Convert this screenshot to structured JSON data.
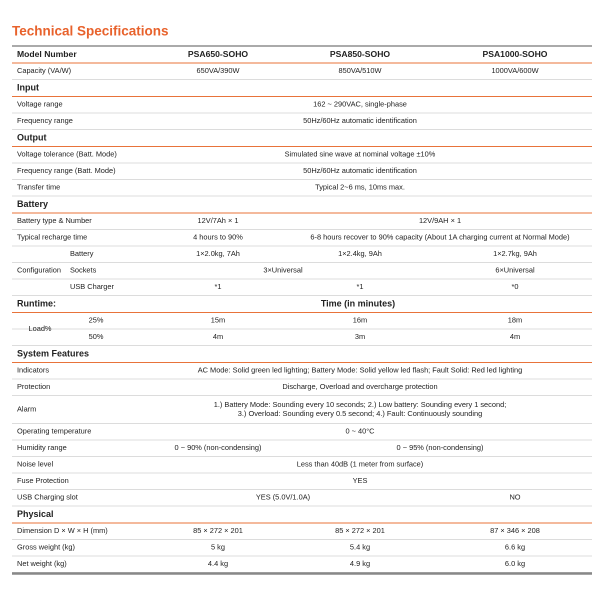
{
  "title": "Technical Specifications",
  "table": {
    "header": [
      "Model Number",
      "PSA650-SOHO",
      "PSA850-SOHO",
      "PSA1000-SOHO"
    ],
    "sections": [
      {
        "rows": [
          [
            "Capacity (VA/W)",
            "650VA/390W",
            "850VA/510W",
            "1000VA/600W"
          ]
        ]
      },
      {
        "heading": "Input",
        "rows": [
          [
            "Voltage range",
            "162 ~ 290VAC, single-phase"
          ],
          [
            "Frequency range",
            "50Hz/60Hz automatic identification"
          ]
        ]
      },
      {
        "heading": "Output",
        "rows": [
          [
            "Voltage tolerance (Batt. Mode)",
            "Simulated sine wave at nominal voltage ±10%"
          ],
          [
            "Frequency range (Batt. Mode)",
            "50Hz/60Hz automatic identification"
          ],
          [
            "Transfer time",
            "Typical 2~6 ms, 10ms max."
          ]
        ]
      },
      {
        "heading": "Battery",
        "rows": [
          [
            "Battery type & Number",
            "12V/7Ah × 1",
            "12V/9AH × 1"
          ],
          [
            "Typical recharge time",
            "4 hours to 90%",
            "6-8 hours recover to 90% capacity (About 1A charging current at Normal Mode)"
          ],
          {
            "group": "Configuration",
            "rows": [
              [
                "Battery",
                "1×2.0kg, 7Ah",
                "1×2.4kg, 9Ah",
                "1×2.7kg, 9Ah"
              ],
              [
                "Sockets",
                "3×Universal",
                "6×Universal"
              ],
              [
                "USB Charger",
                "*1",
                "*1",
                "*0"
              ]
            ]
          }
        ]
      },
      {
        "heading": "Runtime:",
        "subheading": "Time (in minutes)",
        "rows": [
          {
            "group": "Load%",
            "rows": [
              [
                "25%",
                "15m",
                "16m",
                "18m"
              ],
              [
                "50%",
                "4m",
                "3m",
                "4m"
              ]
            ]
          }
        ]
      },
      {
        "heading": "System Features",
        "rows": [
          [
            "Indicators",
            "AC Mode: Solid green led lighting; Battery Mode: Solid yellow led flash; Fault Solid: Red led lighting"
          ],
          [
            "Protection",
            "Discharge, Overload and overcharge protection"
          ],
          [
            "Alarm",
            [
              "1.) Battery Mode: Sounding every 10 seconds; 2.) Low battery: Sounding every 1 second;",
              "3.) Overload: Sounding every 0.5 second; 4.) Fault: Continuously sounding"
            ]
          ],
          [
            "Operating temperature",
            "0 ~ 40°C"
          ],
          [
            "Humidity range",
            "0 ~ 90% (non-condensing)",
            "0 ~ 95% (non-condensing)"
          ],
          [
            "Noise level",
            "Less than 40dB (1 meter from surface)"
          ],
          [
            "Fuse Protection",
            "YES"
          ],
          [
            "USB Charging slot",
            "YES (5.0V/1.0A)",
            "NO"
          ]
        ]
      },
      {
        "heading": "Physical",
        "rows": [
          [
            "Dimension D × W × H (mm)",
            "85 × 272 × 201",
            "85 × 272 × 201",
            "87 × 346 × 208"
          ],
          [
            "Gross weight (kg)",
            "5 kg",
            "5.4 kg",
            "6.6 kg"
          ],
          [
            "Net weight (kg)",
            "4.4 kg",
            "4.9 kg",
            "6.0 kg"
          ]
        ]
      }
    ]
  }
}
